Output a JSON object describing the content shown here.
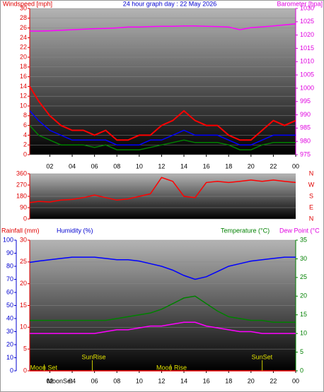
{
  "chart_data": [
    {
      "type": "line",
      "title": "24 hour graph day : 22 May 2026",
      "y_label": "Windspeed [mph]",
      "y2_label": "Barometer [hpa]",
      "x": [
        0.2,
        1,
        2,
        3,
        4,
        5,
        6,
        7,
        8,
        9,
        10,
        11,
        12,
        13,
        14,
        15,
        16,
        17,
        18,
        19,
        20,
        21,
        22,
        23,
        24
      ],
      "xlim": [
        0.2,
        24
      ],
      "xticks": [
        {
          "value": 2,
          "label": "02"
        },
        {
          "value": 4,
          "label": "04"
        },
        {
          "value": 6,
          "label": "06"
        },
        {
          "value": 8,
          "label": "08"
        },
        10,
        12,
        14,
        16,
        18,
        20,
        22,
        {
          "value": 24,
          "label": "00"
        }
      ],
      "ylim": [
        0,
        30
      ],
      "yticks": [
        0,
        2,
        4,
        6,
        8,
        10,
        12,
        14,
        16,
        18,
        20,
        22,
        24,
        26,
        28,
        30
      ],
      "y2lim": [
        975,
        1030
      ],
      "y2ticks": [
        975,
        980,
        985,
        990,
        995,
        1000,
        1005,
        1010,
        1015,
        1020,
        1025,
        1030
      ],
      "series": [
        {
          "color": "#ff0000",
          "values": [
            14,
            11,
            8,
            6,
            5,
            5,
            4,
            5,
            3,
            3,
            4,
            4,
            6,
            7,
            9,
            7,
            6,
            6,
            4,
            3,
            3,
            5,
            7,
            6,
            7
          ]
        },
        {
          "color": "#0000ff",
          "values": [
            9,
            7,
            5,
            4,
            3,
            3,
            3,
            3,
            2,
            2,
            2,
            3,
            3,
            4,
            5,
            4,
            4,
            4,
            3,
            2,
            2,
            3,
            4,
            4,
            4
          ]
        },
        {
          "color": "#008000",
          "values": [
            6,
            4,
            3,
            2,
            2,
            2,
            1.5,
            2,
            1,
            1,
            1,
            1.5,
            2,
            2.5,
            3,
            2.5,
            2.5,
            2.5,
            2,
            1,
            1,
            2,
            2.5,
            2.5,
            2.5
          ]
        },
        {
          "color": "#ff00ff",
          "axis": "y2",
          "values": [
            1021.5,
            1021.5,
            1021.6,
            1021.8,
            1022,
            1022.2,
            1022.4,
            1022.5,
            1022.7,
            1023,
            1023,
            1023.2,
            1023.3,
            1023.3,
            1023.4,
            1023.4,
            1023.3,
            1023.2,
            1023,
            1022,
            1022.8,
            1023.1,
            1023.4,
            1023.8,
            1024.2
          ]
        }
      ]
    },
    {
      "type": "line",
      "x": [
        0.2,
        1,
        2,
        3,
        4,
        5,
        6,
        7,
        8,
        9,
        10,
        11,
        12,
        13,
        14,
        15,
        16,
        17,
        18,
        19,
        20,
        21,
        22,
        23,
        24
      ],
      "xlim": [
        0.2,
        24
      ],
      "ylim": [
        0,
        360
      ],
      "yticks": [
        0,
        90,
        180,
        270,
        360
      ],
      "y2lim": [
        0,
        360
      ],
      "y2ticks": [
        {
          "value": 360,
          "label": "N"
        },
        {
          "value": 270,
          "label": "W"
        },
        {
          "value": 180,
          "label": "S"
        },
        {
          "value": 90,
          "label": "E"
        },
        {
          "value": 0,
          "label": "N"
        }
      ],
      "series": [
        {
          "color": "#ff0000",
          "values": [
            130,
            140,
            135,
            150,
            155,
            170,
            190,
            170,
            150,
            160,
            180,
            200,
            330,
            300,
            180,
            170,
            290,
            300,
            290,
            300,
            310,
            300,
            310,
            300,
            290
          ]
        }
      ]
    },
    {
      "type": "line",
      "y_label": "Rainfall (mm)",
      "humidity_label": "Humidity (%)",
      "y2_label": "Temperature (°C)",
      "y3_label": "Dew Point (°C",
      "x": [
        0.2,
        1,
        2,
        3,
        4,
        5,
        6,
        7,
        8,
        9,
        10,
        11,
        12,
        13,
        14,
        15,
        16,
        17,
        18,
        19,
        20,
        21,
        22,
        23,
        24
      ],
      "xlim": [
        0.2,
        24
      ],
      "xticks": [
        {
          "value": 2,
          "label": "02"
        },
        {
          "value": 4,
          "label": "04"
        },
        {
          "value": 6,
          "label": "06"
        },
        {
          "value": 8,
          "label": "08"
        },
        10,
        12,
        14,
        16,
        18,
        20,
        22,
        {
          "value": 24,
          "label": "00"
        }
      ],
      "ylim": [
        0,
        30
      ],
      "yticks": [
        0,
        5,
        10,
        15,
        20,
        25,
        30
      ],
      "humidity_lim": [
        0,
        100
      ],
      "humidity_ticks": [
        0,
        10,
        20,
        30,
        40,
        50,
        60,
        70,
        80,
        90,
        100
      ],
      "y2lim": [
        0,
        35
      ],
      "y2ticks": [
        0,
        5,
        10,
        15,
        20,
        25,
        30,
        35
      ],
      "series": [
        {
          "color": "#ff0000",
          "values": [
            0,
            0,
            0,
            0,
            0,
            0,
            0,
            0,
            0,
            0,
            0,
            0,
            0,
            0,
            0,
            0,
            0,
            0,
            0,
            0,
            0,
            0,
            0,
            0,
            0
          ]
        },
        {
          "color": "#0000ff",
          "axis": "humidity",
          "values": [
            83,
            84,
            85,
            86,
            87,
            87,
            87,
            86,
            85,
            85,
            84,
            82,
            80,
            77,
            73,
            70,
            72,
            76,
            80,
            82,
            84,
            85,
            86,
            87,
            87
          ]
        },
        {
          "color": "#008000",
          "axis": "y2",
          "values": [
            13.5,
            13.5,
            13.5,
            13.5,
            13.5,
            13.5,
            13.5,
            13.5,
            14,
            14.5,
            15,
            15.5,
            16.5,
            18,
            19.5,
            20,
            18,
            16,
            14.5,
            14,
            13.5,
            13.5,
            13,
            13,
            13
          ]
        },
        {
          "color": "#ff00ff",
          "axis": "y2",
          "values": [
            10,
            10,
            10,
            10,
            10,
            10,
            10,
            10.5,
            11,
            11,
            11.5,
            12,
            12,
            12.5,
            13,
            13,
            12,
            11.5,
            11,
            10.5,
            10.5,
            10,
            10,
            10,
            10
          ]
        }
      ],
      "annotations": [
        {
          "text": "Moon Set",
          "x": 1.5
        },
        {
          "text": "SunRise",
          "x": 5.8
        },
        {
          "text": "Moon Rise",
          "x": 12.8
        },
        {
          "text": "SunSet",
          "x": 21
        },
        {
          "text": "MoonSet",
          "x": 1.5
        }
      ]
    }
  ]
}
